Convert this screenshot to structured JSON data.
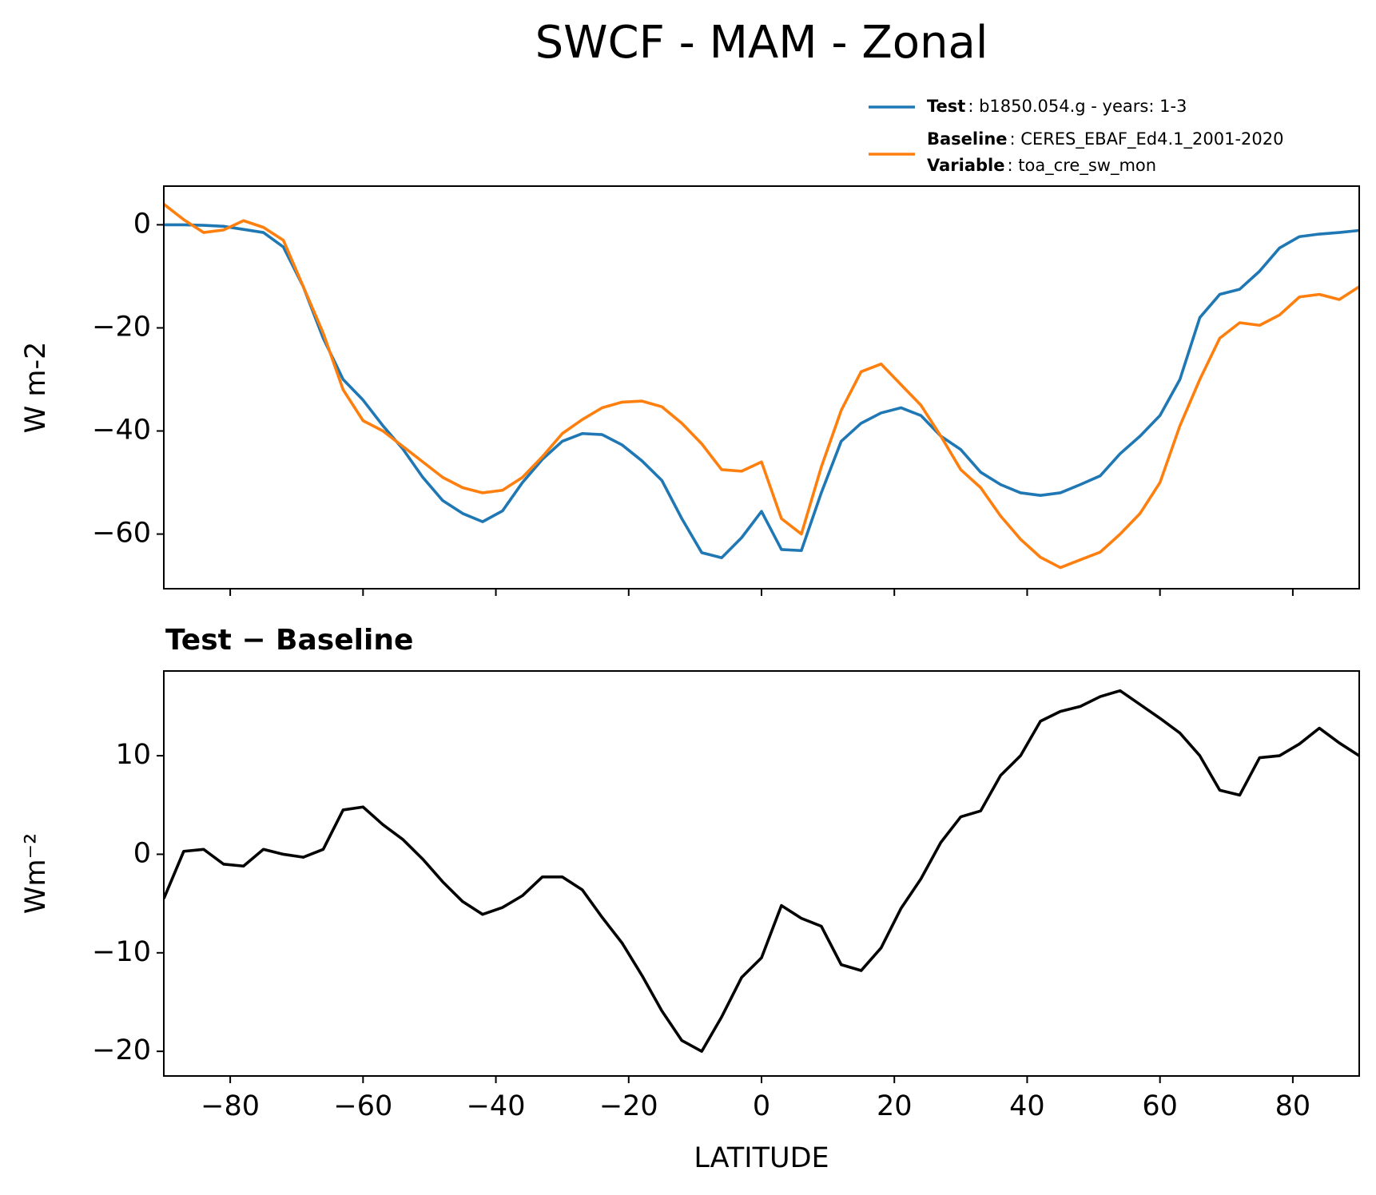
{
  "chart_data": [
    {
      "type": "line",
      "title": "SWCF - MAM - Zonal",
      "ylabel": "W m-2",
      "x": [
        -90,
        -87,
        -84,
        -81,
        -78,
        -75,
        -72,
        -69,
        -66,
        -63,
        -60,
        -57,
        -54,
        -51,
        -48,
        -45,
        -42,
        -39,
        -36,
        -33,
        -30,
        -27,
        -24,
        -21,
        -18,
        -15,
        -12,
        -9,
        -6,
        -3,
        0,
        3,
        6,
        9,
        12,
        15,
        18,
        21,
        24,
        27,
        30,
        33,
        36,
        39,
        42,
        45,
        48,
        51,
        54,
        57,
        60,
        63,
        66,
        69,
        72,
        75,
        78,
        81,
        84,
        87,
        90
      ],
      "series": [
        {
          "name": "Test",
          "description": ": b1850.054.g - years: 1-3",
          "color": "#1f77b4",
          "values": [
            0,
            0,
            -0.1,
            -0.3,
            -0.9,
            -1.5,
            -4.3,
            -12,
            -22,
            -30,
            -34,
            -39,
            -43.5,
            -49,
            -53.5,
            -56,
            -57.6,
            -55.5,
            -50,
            -45.5,
            -42,
            -40.5,
            -40.7,
            -42.7,
            -45.8,
            -49.6,
            -57,
            -63.6,
            -64.6,
            -60.7,
            -55.6,
            -63,
            -63.2,
            -52,
            -42,
            -38.5,
            -36.5,
            -35.5,
            -37,
            -41,
            -43.6,
            -48,
            -50.4,
            -52,
            -52.5,
            -52,
            -50.4,
            -48.7,
            -44.4,
            -41,
            -37,
            -30,
            -18,
            -13.5,
            -12.5,
            -9,
            -4.5,
            -2.3,
            -1.8,
            -1.5,
            -1.1
          ]
        },
        {
          "name": "Baseline",
          "description": ": CERES_EBAF_Ed4.1_2001-2020",
          "color": "#ff7f0e",
          "values": [
            4,
            1,
            -1.5,
            -1,
            0.8,
            -0.5,
            -3,
            -12,
            -21,
            -32,
            -38,
            -40,
            -43,
            -46,
            -49,
            -51,
            -52,
            -51.5,
            -49,
            -45,
            -40.5,
            -37.8,
            -35.5,
            -34.4,
            -34.2,
            -35.3,
            -38.5,
            -42.5,
            -47.5,
            -47.8,
            -46,
            -57,
            -60,
            -47,
            -36,
            -28.5,
            -27,
            -31,
            -35,
            -41,
            -47.5,
            -51,
            -56.5,
            -61,
            -64.5,
            -66.5,
            -65,
            -63.5,
            -60,
            -56,
            -50,
            -39,
            -30,
            -22,
            -19,
            -19.5,
            -17.5,
            -14,
            -13.5,
            -14.5,
            -12
          ]
        }
      ],
      "legend_note": {
        "name": "Variable",
        "description": ": toa_cre_sw_mon"
      },
      "xlim": [
        -90,
        90
      ],
      "ylim": [
        -70.6,
        7.5
      ],
      "xticks": [
        -80,
        -60,
        -40,
        -20,
        0,
        20,
        40,
        60,
        80
      ],
      "show_xtick_labels": false,
      "yticks": [
        {
          "value": -60,
          "label": "−60"
        },
        {
          "value": -40,
          "label": "−40"
        },
        {
          "value": -20,
          "label": "−20"
        },
        0
      ]
    },
    {
      "type": "line",
      "title": "Test − Baseline",
      "xlabel": "LATITUDE",
      "ylabel": "Wm⁻²",
      "x": [
        -90,
        -87,
        -84,
        -81,
        -78,
        -75,
        -72,
        -69,
        -66,
        -63,
        -60,
        -57,
        -54,
        -51,
        -48,
        -45,
        -42,
        -39,
        -36,
        -33,
        -30,
        -27,
        -24,
        -21,
        -18,
        -15,
        -12,
        -9,
        -6,
        -3,
        0,
        3,
        6,
        9,
        12,
        15,
        18,
        21,
        24,
        27,
        30,
        33,
        36,
        39,
        42,
        45,
        48,
        51,
        54,
        57,
        60,
        63,
        66,
        69,
        72,
        75,
        78,
        81,
        84,
        87,
        90
      ],
      "series": [
        {
          "color": "#000000",
          "values": [
            -4.5,
            0.3,
            0.5,
            -1,
            -1.2,
            0.5,
            0,
            -0.3,
            0.5,
            4.5,
            4.8,
            3,
            1.5,
            -0.5,
            -2.8,
            -4.8,
            -6.1,
            -5.4,
            -4.2,
            -2.3,
            -2.3,
            -3.6,
            -6.4,
            -9,
            -12.3,
            -15.9,
            -18.9,
            -20,
            -16.5,
            -12.5,
            -10.5,
            -5.2,
            -6.5,
            -7.3,
            -11.2,
            -11.8,
            -9.5,
            -5.5,
            -2.5,
            1.2,
            3.8,
            4.4,
            8,
            10,
            13.5,
            14.5,
            15,
            16,
            16.6,
            15.2,
            13.8,
            12.3,
            10,
            6.5,
            6,
            9.8,
            10,
            11.2,
            12.8,
            11.3,
            10
          ]
        }
      ],
      "xlim": [
        -90,
        90
      ],
      "ylim": [
        -22.5,
        18.6
      ],
      "xticks": [
        {
          "value": -80,
          "label": "−80"
        },
        {
          "value": -60,
          "label": "−60"
        },
        {
          "value": -40,
          "label": "−40"
        },
        {
          "value": -20,
          "label": "−20"
        },
        0,
        20,
        40,
        60,
        80
      ],
      "show_xtick_labels": true,
      "yticks": [
        {
          "value": -20,
          "label": "−20"
        },
        {
          "value": -10,
          "label": "−10"
        },
        0,
        10
      ]
    }
  ]
}
